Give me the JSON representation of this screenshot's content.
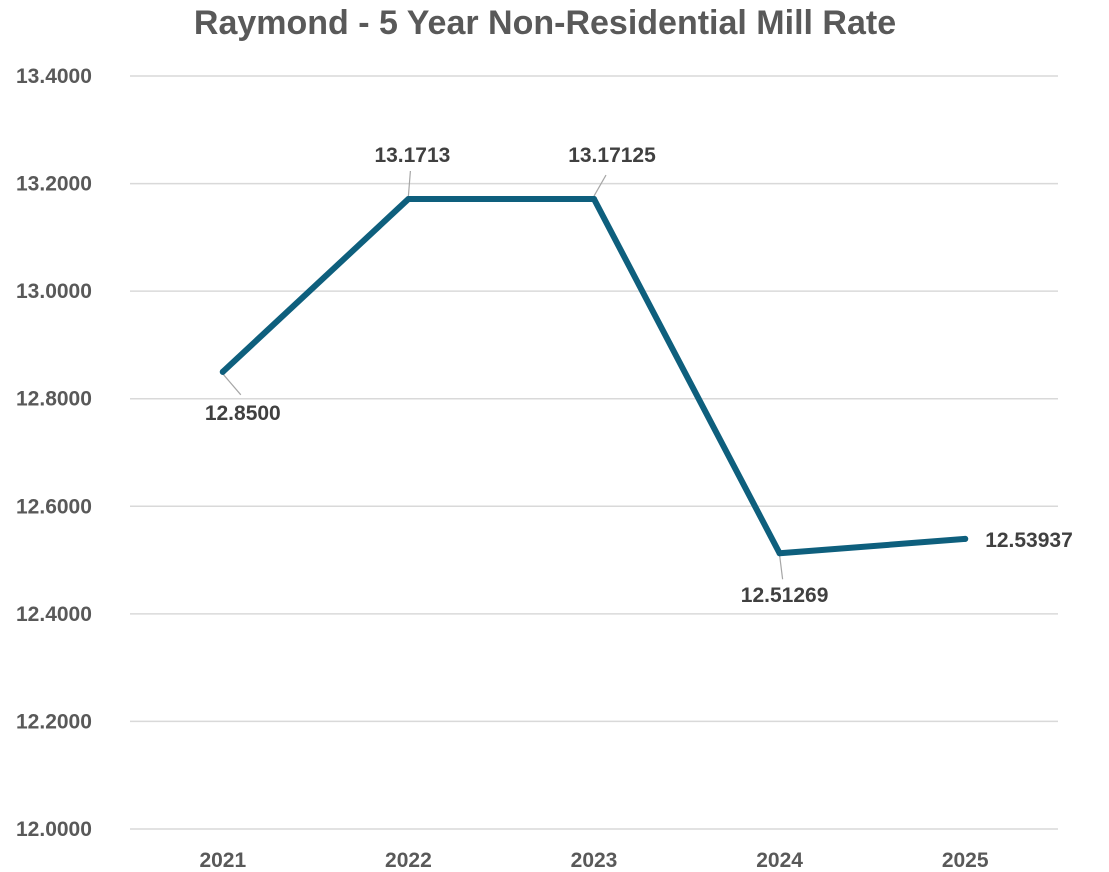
{
  "chart_data": {
    "type": "line",
    "title": "Raymond - 5 Year Non-Residential Mill Rate",
    "xlabel": "",
    "ylabel": "",
    "categories": [
      "2021",
      "2022",
      "2023",
      "2024",
      "2025"
    ],
    "series": [
      {
        "values": [
          12.85,
          13.1713,
          13.17125,
          12.51269,
          12.53937
        ],
        "data_labels": [
          "12.8500",
          "13.1713",
          "13.17125",
          "12.51269",
          "12.53937"
        ],
        "label_placement": [
          "below",
          "above",
          "above",
          "below",
          "right"
        ],
        "color": "#0e5f7d"
      }
    ],
    "ylim": [
      12.0,
      13.4
    ],
    "yticks": [
      13.4,
      13.2,
      13.0,
      12.8,
      12.6,
      12.4,
      12.2,
      12.0
    ],
    "ytick_labels": [
      "13.4000",
      "13.2000",
      "13.0000",
      "12.8000",
      "12.6000",
      "12.4000",
      "12.2000",
      "12.0000"
    ],
    "grid": true,
    "legend": "none"
  }
}
